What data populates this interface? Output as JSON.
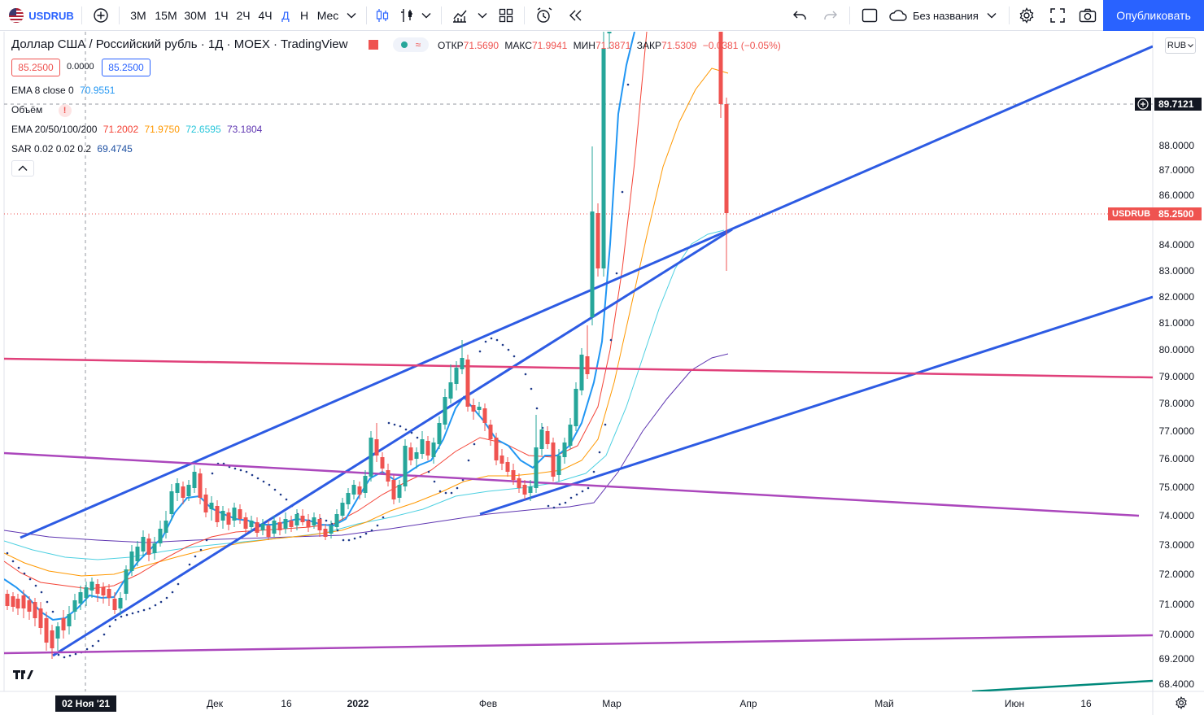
{
  "toolbar": {
    "symbol": "USDRUB",
    "intervals": [
      "3М",
      "15М",
      "30М",
      "1Ч",
      "2Ч",
      "4Ч",
      "Д",
      "Н",
      "Мес"
    ],
    "active_interval": "Д",
    "layout_name": "Без названия",
    "publish_label": "Опубликовать"
  },
  "legend": {
    "title": "Доллар США / Российский рубль · 1Д · MOEX · TradingView",
    "ohlc": {
      "open_label": "ОТКР",
      "open": "71.5690",
      "high_label": "МАКС",
      "high": "71.9941",
      "low_label": "МИН",
      "low": "71.3871",
      "close_label": "ЗАКР",
      "close": "71.5309",
      "change": "−0.0381 (−0.05%)"
    },
    "bid": "85.2500",
    "spread": "0.0000",
    "ask": "85.2500",
    "ema8": {
      "label": "EMA 8 close 0",
      "value": "70.9551"
    },
    "volume": {
      "label": "Объём",
      "warning": "!"
    },
    "emas": {
      "label": "EMA 20/50/100/200",
      "v20": "71.2002",
      "v50": "71.9750",
      "v100": "72.6595",
      "v200": "73.1804"
    },
    "sar": {
      "label": "SAR 0.02 0.02 0.2",
      "value": "69.4745"
    }
  },
  "price_axis": {
    "currency": "RUB",
    "ticks": [
      "88.0000",
      "87.0000",
      "86.0000",
      "84.0000",
      "83.0000",
      "82.0000",
      "81.0000",
      "80.0000",
      "79.0000",
      "78.0000",
      "77.0000",
      "76.0000",
      "75.0000",
      "74.0000",
      "73.0000",
      "72.0000",
      "71.0000",
      "70.0000",
      "69.2000",
      "68.4000"
    ],
    "crosshair_price": "89.7121",
    "last_symbol": "USDRUB",
    "last_price": "85.2500"
  },
  "time_axis": {
    "crosshair_date": "02 Ноя '21",
    "labels": [
      "Дек",
      "16",
      "2022",
      "Фев",
      "Мар",
      "Апр",
      "Май",
      "Июн",
      "16"
    ]
  },
  "colors": {
    "accent": "#2962ff",
    "up": "#26a69a",
    "down": "#ef5350",
    "ema8": "#2196f3",
    "ema20": "#f44336",
    "ema50": "#ff9800",
    "ema100": "#4dd0e1",
    "ema200": "#5e35b1",
    "channel": "#2d5be3",
    "purple_lines": "#ab47bc",
    "pink_line": "#e0407a"
  }
}
